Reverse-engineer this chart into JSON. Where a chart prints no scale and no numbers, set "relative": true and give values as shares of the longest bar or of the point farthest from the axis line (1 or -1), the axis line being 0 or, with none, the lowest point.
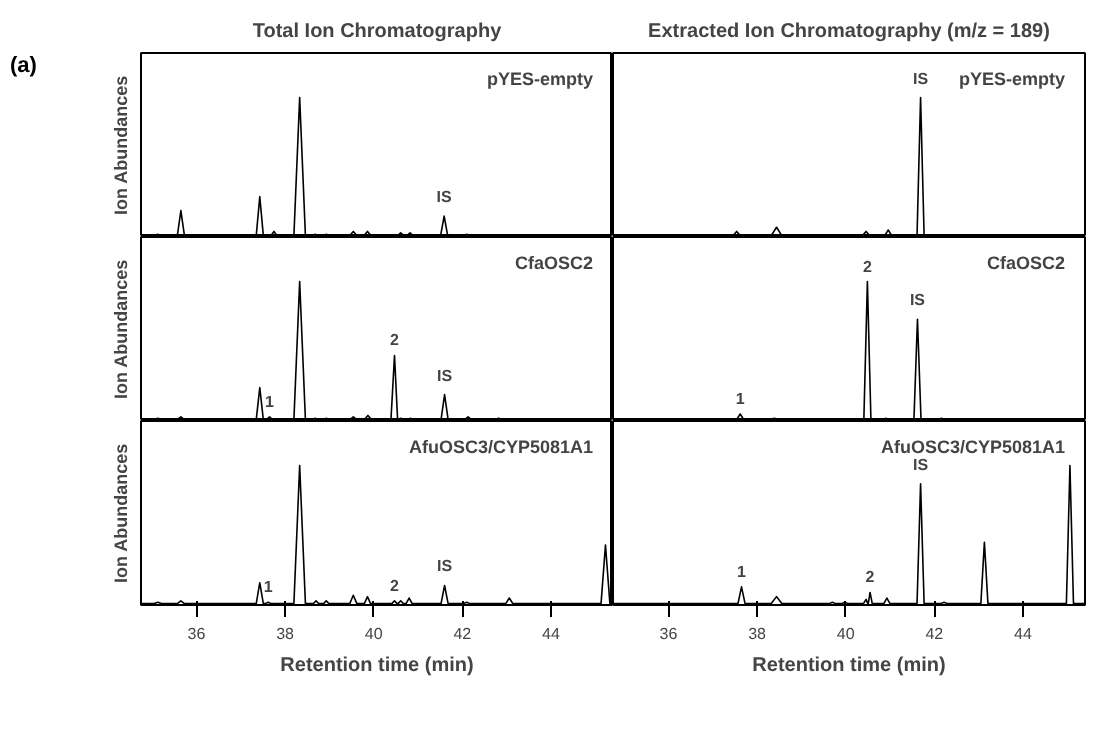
{
  "chart_data": [
    {
      "type": "line",
      "title": "Total Ion Chromatography",
      "subtitle": "pYES-empty",
      "ylabel": "Ion Abundances",
      "relative": true,
      "xlim": [
        34.75,
        45.4
      ],
      "xticks": [
        36,
        38,
        40,
        42,
        44
      ],
      "tick_labels": false,
      "grid": false,
      "annotations": [
        "(a)",
        {
          "text": "IS",
          "x": 41.59,
          "y": 0.15
        }
      ],
      "series": [
        {
          "color": "#000000",
          "x": [
            34.75,
            35.05,
            35.13,
            35.2,
            35.57,
            35.65,
            35.73,
            37.35,
            37.43,
            37.51,
            37.68,
            37.75,
            37.82,
            38.2,
            38.33,
            38.46,
            38.62,
            38.68,
            38.74,
            38.87,
            38.93,
            38.99,
            39.46,
            39.54,
            39.62,
            39.78,
            39.86,
            39.94,
            40.54,
            40.61,
            40.68,
            40.75,
            40.82,
            40.89,
            41.51,
            41.59,
            41.67,
            42.03,
            42.1,
            42.17,
            45.4
          ],
          "values": [
            0.01,
            0.01,
            0.02,
            0.01,
            0.01,
            0.19,
            0.01,
            0.01,
            0.29,
            0.01,
            0.01,
            0.04,
            0.01,
            0.01,
            1,
            0.01,
            0.01,
            0.02,
            0.01,
            0.01,
            0.02,
            0.01,
            0.01,
            0.04,
            0.01,
            0.01,
            0.04,
            0.01,
            0.01,
            0.03,
            0.01,
            0.01,
            0.03,
            0.01,
            0.01,
            0.15,
            0.01,
            0.01,
            0.02,
            0.01,
            0.01
          ]
        }
      ]
    },
    {
      "type": "line",
      "title": "Extracted Ion Chromatography (m/z = 189)",
      "subtitle": "pYES-empty",
      "relative": true,
      "xlim": [
        34.75,
        45.4
      ],
      "xticks": [
        36,
        38,
        40,
        42,
        44
      ],
      "tick_labels": false,
      "grid": false,
      "annotations": [
        {
          "text": "IS",
          "x": 41.69,
          "y": 1
        }
      ],
      "series": [
        {
          "color": "#000000",
          "x": [
            34.75,
            37.46,
            37.54,
            37.62,
            38.32,
            38.44,
            38.56,
            40.38,
            40.46,
            40.54,
            40.88,
            40.96,
            41.04,
            41.61,
            41.69,
            41.77,
            45.4
          ],
          "values": [
            0.01,
            0.01,
            0.04,
            0.01,
            0.01,
            0.07,
            0.01,
            0.01,
            0.04,
            0.01,
            0.01,
            0.05,
            0.01,
            0.01,
            1,
            0.01,
            0.01
          ]
        }
      ]
    },
    {
      "type": "line",
      "subtitle": "CfaOSC2",
      "ylabel": "Ion Abundances",
      "relative": true,
      "xlim": [
        34.75,
        45.4
      ],
      "xticks": [
        36,
        38,
        40,
        42,
        44
      ],
      "tick_labels": false,
      "grid": false,
      "annotations": [
        {
          "text": "1",
          "x": 37.65,
          "y": 0.03
        },
        {
          "text": "2",
          "x": 40.47,
          "y": 0.47
        },
        {
          "text": "IS",
          "x": 41.6,
          "y": 0.19
        }
      ],
      "series": [
        {
          "color": "#000000",
          "x": [
            34.75,
            35.05,
            35.13,
            35.21,
            35.57,
            35.65,
            35.73,
            37.35,
            37.43,
            37.51,
            37.58,
            37.65,
            37.72,
            38.2,
            38.33,
            38.46,
            38.62,
            38.68,
            38.74,
            38.87,
            38.93,
            38.99,
            39.46,
            39.54,
            39.62,
            39.79,
            39.87,
            39.95,
            40.39,
            40.47,
            40.54,
            40.56,
            40.61,
            40.66,
            40.77,
            40.83,
            40.89,
            41.52,
            41.6,
            41.68,
            42.05,
            42.13,
            42.21,
            42.74,
            42.82,
            42.9,
            45.4
          ],
          "values": [
            0.01,
            0.01,
            0.02,
            0.01,
            0.01,
            0.03,
            0.01,
            0.01,
            0.24,
            0.01,
            0.01,
            0.03,
            0.01,
            0.01,
            1,
            0.01,
            0.01,
            0.02,
            0.01,
            0.01,
            0.02,
            0.01,
            0.01,
            0.03,
            0.01,
            0.01,
            0.04,
            0.01,
            0.01,
            0.47,
            0.01,
            0.01,
            0.02,
            0.01,
            0.01,
            0.02,
            0.01,
            0.01,
            0.19,
            0.01,
            0.01,
            0.03,
            0.01,
            0.01,
            0.02,
            0.01,
            0.01
          ]
        }
      ]
    },
    {
      "type": "line",
      "subtitle": "CfaOSC2",
      "relative": true,
      "xlim": [
        34.75,
        45.4
      ],
      "xticks": [
        36,
        38,
        40,
        42,
        44
      ],
      "tick_labels": false,
      "grid": false,
      "annotations": [
        {
          "text": "1",
          "x": 37.62,
          "y": 0.05
        },
        {
          "text": "2",
          "x": 40.49,
          "y": 1
        },
        {
          "text": "IS",
          "x": 41.62,
          "y": 0.73
        }
      ],
      "series": [
        {
          "color": "#000000",
          "x": [
            34.75,
            37.54,
            37.62,
            37.7,
            38.3,
            38.39,
            38.48,
            40.41,
            40.49,
            40.57,
            40.84,
            40.91,
            40.98,
            41.54,
            41.62,
            41.7,
            42.09,
            42.16,
            42.23,
            45.4
          ],
          "values": [
            0.01,
            0.01,
            0.05,
            0.01,
            0.01,
            0.02,
            0.01,
            0.01,
            1,
            0.01,
            0.01,
            0.02,
            0.01,
            0.01,
            0.73,
            0.01,
            0.01,
            0.02,
            0.01,
            0.01
          ]
        }
      ]
    },
    {
      "type": "line",
      "subtitle": "AfuOSC3/CYP5081A1",
      "ylabel": "Ion Abundances",
      "xlabel": "Retention time (min)",
      "relative": true,
      "xlim": [
        34.75,
        45.4
      ],
      "xticks": [
        36,
        38,
        40,
        42,
        44
      ],
      "tick_labels": "x",
      "grid": false,
      "annotations": [
        {
          "text": "1",
          "x": 37.62,
          "y": 0.02
        },
        {
          "text": "2",
          "x": 40.47,
          "y": 0.03
        },
        {
          "text": "IS",
          "x": 41.6,
          "y": 0.14
        }
      ],
      "series": [
        {
          "color": "#000000",
          "x": [
            34.75,
            35.05,
            35.13,
            35.21,
            35.57,
            35.65,
            35.73,
            37.35,
            37.43,
            37.51,
            37.56,
            37.62,
            37.68,
            38.2,
            38.33,
            38.46,
            38.64,
            38.7,
            38.76,
            38.87,
            38.93,
            38.99,
            39.46,
            39.54,
            39.62,
            39.79,
            39.86,
            39.93,
            40.41,
            40.47,
            40.53,
            40.55,
            40.61,
            40.67,
            40.73,
            40.8,
            40.87,
            41.52,
            41.6,
            41.68,
            42.03,
            42.1,
            42.17,
            42.98,
            43.06,
            43.14,
            45.13,
            45.23,
            45.33,
            45.4
          ],
          "values": [
            0.01,
            0.01,
            0.02,
            0.01,
            0.01,
            0.03,
            0.01,
            0.01,
            0.16,
            0.01,
            0.01,
            0.02,
            0.01,
            0.01,
            1,
            0.01,
            0.01,
            0.03,
            0.01,
            0.01,
            0.03,
            0.01,
            0.01,
            0.07,
            0.01,
            0.01,
            0.06,
            0.01,
            0.01,
            0.03,
            0.01,
            0.01,
            0.03,
            0.01,
            0.01,
            0.05,
            0.01,
            0.01,
            0.14,
            0.01,
            0.01,
            0.02,
            0.01,
            0.01,
            0.05,
            0.01,
            0.01,
            0.43,
            0.01,
            0.01
          ]
        }
      ]
    },
    {
      "type": "line",
      "subtitle": "AfuOSC3/CYP5081A1",
      "xlabel": "Retention time (min)",
      "relative": true,
      "xlim": [
        34.75,
        45.4
      ],
      "xticks": [
        36,
        38,
        40,
        42,
        44
      ],
      "tick_labels": "x",
      "grid": false,
      "annotations": [
        {
          "text": "1",
          "x": 37.65,
          "y": 0.13
        },
        {
          "text": "2",
          "x": 40.55,
          "y": 0.09
        },
        {
          "text": "IS",
          "x": 41.69,
          "y": 0.87
        }
      ],
      "series": [
        {
          "color": "#000000",
          "x": [
            34.75,
            37.57,
            37.65,
            37.73,
            38.32,
            38.44,
            38.56,
            39.63,
            39.7,
            39.77,
            39.91,
            39.98,
            40.05,
            40.4,
            40.46,
            40.5,
            40.51,
            40.55,
            40.6,
            40.86,
            40.93,
            41.0,
            41.61,
            41.69,
            41.77,
            42.15,
            42.22,
            42.29,
            43.05,
            43.13,
            43.21,
            44.98,
            45.06,
            45.14,
            45.4
          ],
          "values": [
            0.01,
            0.01,
            0.13,
            0.01,
            0.01,
            0.06,
            0.01,
            0.01,
            0.02,
            0.01,
            0.01,
            0.02,
            0.01,
            0.01,
            0.04,
            0.01,
            0.01,
            0.09,
            0.01,
            0.01,
            0.05,
            0.01,
            0.01,
            0.87,
            0.01,
            0.01,
            0.02,
            0.01,
            0.01,
            0.45,
            0.01,
            0.01,
            1,
            0.01,
            0.01
          ]
        }
      ]
    }
  ]
}
